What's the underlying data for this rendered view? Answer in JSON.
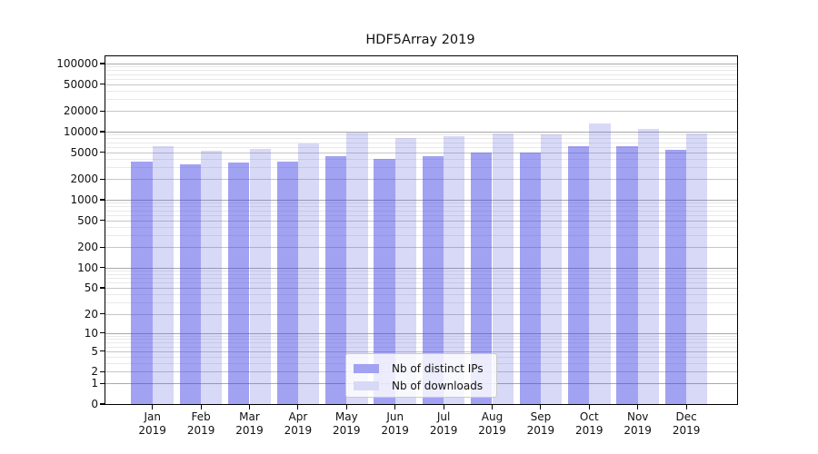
{
  "title": "HDF5Array 2019",
  "legend": {
    "items": [
      {
        "label": "Nb of distinct IPs",
        "color": "#a2a2f2"
      },
      {
        "label": "Nb of downloads",
        "color": "#d8d8f7"
      }
    ]
  },
  "chart_data": {
    "type": "bar",
    "title": "HDF5Array 2019",
    "categories": [
      "Jan 2019",
      "Feb 2019",
      "Mar 2019",
      "Apr 2019",
      "May 2019",
      "Jun 2019",
      "Jul 2019",
      "Aug 2019",
      "Sep 2019",
      "Oct 2019",
      "Nov 2019",
      "Dec 2019"
    ],
    "series": [
      {
        "name": "Nb of distinct IPs",
        "color": "#a2a2f2",
        "fill": "rgba(69,69,229,0.5)",
        "values": [
          3600,
          3350,
          3550,
          3650,
          4400,
          4000,
          4300,
          5000,
          4950,
          6100,
          6050,
          5450
        ]
      },
      {
        "name": "Nb of downloads",
        "color": "#d8d8f7",
        "fill": "rgba(99,99,223,0.25)",
        "values": [
          6200,
          5200,
          5600,
          6700,
          9800,
          8000,
          8500,
          9400,
          9100,
          13200,
          10800,
          9300
        ]
      }
    ],
    "yscale": "log10(value+1)",
    "yticks": [
      0,
      1,
      2,
      5,
      10,
      20,
      50,
      100,
      200,
      500,
      1000,
      2000,
      5000,
      10000,
      20000,
      50000,
      100000
    ],
    "ylim": [
      0,
      100000
    ],
    "xlabel": "",
    "ylabel": "",
    "grid": "horizontal, minor log lines at 3,4,6,7,8,9 per decade",
    "legend_position": "inside-bottom-center"
  }
}
